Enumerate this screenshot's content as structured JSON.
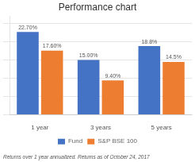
{
  "chart_data": {
    "type": "bar",
    "title": "Performance chart",
    "categories": [
      "1 year",
      "3 years",
      "5 years"
    ],
    "series": [
      {
        "name": "Fund",
        "color": "#4472C4",
        "values": [
          22.7,
          15.0,
          18.8
        ],
        "value_labels": [
          "22.70%",
          "15.00%",
          "18.8%"
        ]
      },
      {
        "name": "S&P BSE 100",
        "color": "#ED7D31",
        "values": [
          17.6,
          9.4,
          14.5
        ],
        "value_labels": [
          "17.60%",
          "9.40%",
          "14.5%"
        ]
      }
    ],
    "ylim": [
      0,
      27
    ],
    "yticks": [
      0,
      5,
      10,
      15,
      20,
      25
    ],
    "grid": true,
    "legend": "bottom",
    "data_labels": true,
    "tick_labels": "x",
    "annotations": [
      "Returns over 1 year annualized. Returns as of October 24, 2017"
    ]
  }
}
